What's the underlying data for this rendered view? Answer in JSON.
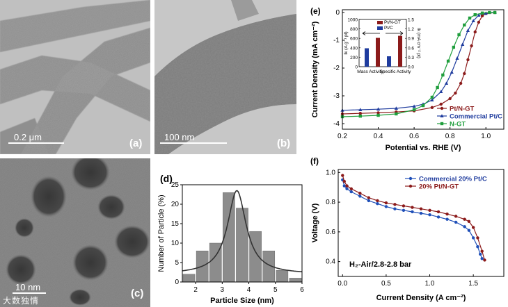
{
  "figure": {
    "panels": {
      "a": {
        "label": "(a)",
        "scale": "0.2 μm"
      },
      "b": {
        "label": "(b)",
        "scale": "100 nm"
      },
      "c": {
        "label": "(c)",
        "scale": "10 nm"
      },
      "d": {
        "label": "(d)"
      },
      "e": {
        "label": "(e)"
      },
      "f": {
        "label": "(f)"
      }
    },
    "watermark": "大数独情"
  },
  "chart_data": [
    {
      "id": "d",
      "type": "bar",
      "title": "",
      "xlabel": "Particle Size (nm)",
      "ylabel": "Number of Particle (%)",
      "xlim": [
        1.5,
        6
      ],
      "ylim": [
        0,
        25
      ],
      "xticks": [
        2,
        3,
        4,
        5,
        6
      ],
      "yticks": [
        0,
        5,
        10,
        15,
        20,
        25
      ],
      "bar_centers": [
        1.75,
        2.25,
        2.75,
        3.25,
        3.75,
        4.25,
        4.75,
        5.25,
        5.75
      ],
      "bar_width": 0.5,
      "values": [
        2,
        8,
        10,
        23,
        19,
        13,
        8,
        3,
        1
      ],
      "fit_curve": {
        "type": "lorentzian",
        "center": 3.55,
        "peak": 23.5,
        "width": 0.85,
        "baseline": 2
      }
    },
    {
      "id": "e",
      "type": "line",
      "xlabel": "Potential vs. RHE (V)",
      "ylabel": "Current Density (mA cm⁻²)",
      "xlim": [
        0.2,
        1.1
      ],
      "ylim": [
        -4.2,
        0.1
      ],
      "xticks": [
        0.2,
        0.4,
        0.6,
        0.8,
        1.0
      ],
      "yticks": [
        0,
        -1,
        -2,
        -3,
        -4
      ],
      "series": [
        {
          "name": "Pt/N-GT",
          "color": "#8b1a1a",
          "marker": "circle",
          "x": [
            0.2,
            0.3,
            0.4,
            0.5,
            0.6,
            0.7,
            0.75,
            0.8,
            0.83,
            0.86,
            0.88,
            0.9,
            0.92,
            0.94,
            0.96,
            0.98,
            1.0,
            1.05
          ],
          "y": [
            -3.65,
            -3.63,
            -3.61,
            -3.58,
            -3.54,
            -3.42,
            -3.3,
            -3.1,
            -2.9,
            -2.55,
            -2.2,
            -1.7,
            -1.2,
            -0.7,
            -0.35,
            -0.12,
            -0.04,
            0.0
          ]
        },
        {
          "name": "Commercial Pt/C",
          "color": "#1f3c9e",
          "marker": "triangle",
          "x": [
            0.2,
            0.3,
            0.4,
            0.5,
            0.6,
            0.65,
            0.7,
            0.75,
            0.78,
            0.81,
            0.84,
            0.87,
            0.9,
            0.93,
            0.96,
            1.0,
            1.05
          ],
          "y": [
            -3.52,
            -3.5,
            -3.48,
            -3.45,
            -3.38,
            -3.3,
            -3.15,
            -2.85,
            -2.55,
            -2.15,
            -1.65,
            -1.15,
            -0.65,
            -0.3,
            -0.1,
            -0.03,
            0.0
          ]
        },
        {
          "name": "N-GT",
          "color": "#1f9e3c",
          "marker": "square",
          "x": [
            0.2,
            0.3,
            0.4,
            0.5,
            0.6,
            0.65,
            0.7,
            0.73,
            0.76,
            0.79,
            0.82,
            0.85,
            0.88,
            0.91,
            0.94,
            0.98,
            1.02,
            1.05
          ],
          "y": [
            -3.75,
            -3.73,
            -3.7,
            -3.65,
            -3.5,
            -3.35,
            -3.05,
            -2.7,
            -2.25,
            -1.75,
            -1.25,
            -0.8,
            -0.45,
            -0.2,
            -0.08,
            -0.02,
            0.0,
            0.0
          ]
        }
      ],
      "inset": {
        "type": "bar",
        "categories": [
          "Mass Activity",
          "Specific Activity"
        ],
        "left_axis_label": "Ik (A g⁻¹ pt)",
        "right_axis_label": "Ik (mA cm⁻² pt)",
        "left_ylim": [
          0,
          1000
        ],
        "right_ylim": [
          0,
          1.5
        ],
        "left_ticks": [
          0,
          200,
          400,
          600,
          800,
          1000
        ],
        "right_ticks": [
          0.0,
          0.3,
          0.6,
          0.9,
          1.2,
          1.5
        ],
        "series": [
          {
            "name": "Pt/N-GT",
            "color": "#8b1a1a",
            "mass_value": 610,
            "specific_value": 0.98
          },
          {
            "name": "Pt/C",
            "color": "#1f3c9e",
            "mass_value": 390,
            "specific_value": 0.33
          }
        ]
      }
    },
    {
      "id": "f",
      "type": "line",
      "xlabel": "Current Density (A cm⁻²)",
      "ylabel": "Voltage (V)",
      "xlim": [
        -0.05,
        1.85
      ],
      "ylim": [
        0.3,
        1.02
      ],
      "xticks": [
        0.0,
        0.5,
        1.0,
        1.5
      ],
      "yticks": [
        0.4,
        0.6,
        0.8,
        1.0
      ],
      "annotation": "H₂-Air/2.8-2.8 bar",
      "series": [
        {
          "name": "Commercial 20% Pt/C",
          "color": "#1f4fb8",
          "marker": "circle",
          "x": [
            0.0,
            0.02,
            0.05,
            0.1,
            0.2,
            0.3,
            0.4,
            0.5,
            0.6,
            0.7,
            0.8,
            0.9,
            1.0,
            1.1,
            1.2,
            1.3,
            1.4,
            1.45,
            1.5,
            1.55,
            1.58,
            1.6
          ],
          "y": [
            0.95,
            0.91,
            0.89,
            0.87,
            0.84,
            0.81,
            0.79,
            0.77,
            0.755,
            0.745,
            0.735,
            0.725,
            0.715,
            0.7,
            0.685,
            0.665,
            0.635,
            0.61,
            0.56,
            0.5,
            0.45,
            0.42
          ]
        },
        {
          "name": "20% Pt/N-GT",
          "color": "#8b1a1a",
          "marker": "circle",
          "x": [
            0.0,
            0.02,
            0.05,
            0.1,
            0.2,
            0.3,
            0.4,
            0.5,
            0.6,
            0.7,
            0.8,
            0.9,
            1.0,
            1.1,
            1.2,
            1.3,
            1.4,
            1.45,
            1.5,
            1.55,
            1.6,
            1.63
          ],
          "y": [
            0.98,
            0.94,
            0.91,
            0.89,
            0.86,
            0.83,
            0.81,
            0.795,
            0.785,
            0.775,
            0.765,
            0.755,
            0.745,
            0.735,
            0.72,
            0.705,
            0.685,
            0.67,
            0.63,
            0.56,
            0.47,
            0.41
          ]
        }
      ]
    }
  ]
}
